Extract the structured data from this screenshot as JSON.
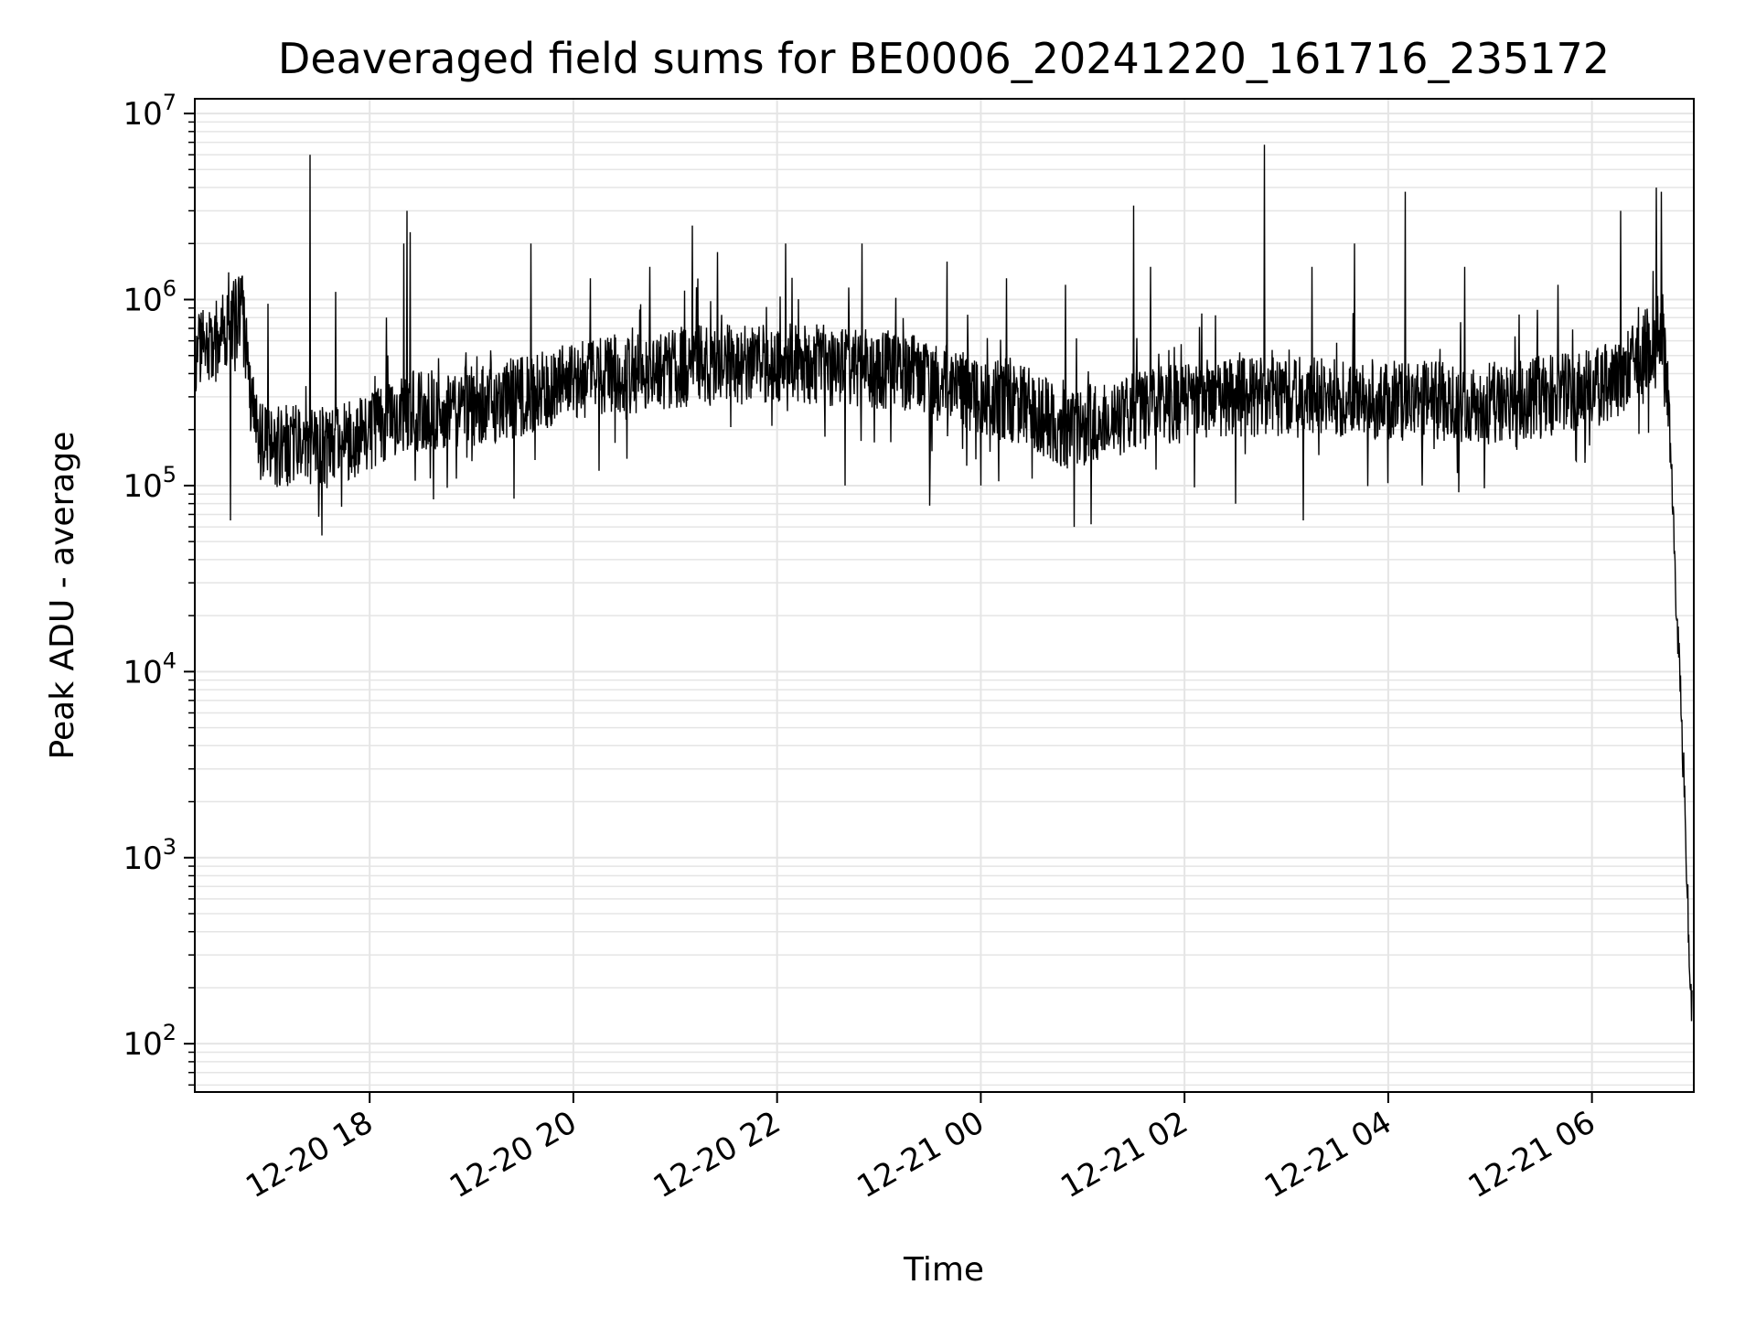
{
  "chart_data": {
    "type": "line",
    "title": "Deaveraged field sums for BE0006_20241220_161716_235172",
    "xlabel": "Time",
    "ylabel": "Peak ADU - average",
    "x_type": "datetime",
    "x_range": [
      "2024-12-20 16:17",
      "2024-12-21 07:00"
    ],
    "y_scale": "log",
    "ylim": [
      55,
      12000000
    ],
    "grid": true,
    "legend": "none",
    "line_color": "#000000",
    "grid_color": "#e5e5e5",
    "x_ticks": [
      {
        "value": "2024-12-20 18:00",
        "label": "12-20 18"
      },
      {
        "value": "2024-12-20 20:00",
        "label": "12-20 20"
      },
      {
        "value": "2024-12-20 22:00",
        "label": "12-20 22"
      },
      {
        "value": "2024-12-21 00:00",
        "label": "12-21 00"
      },
      {
        "value": "2024-12-21 02:00",
        "label": "12-21 02"
      },
      {
        "value": "2024-12-21 04:00",
        "label": "12-21 04"
      },
      {
        "value": "2024-12-21 06:00",
        "label": "12-21 06"
      }
    ],
    "y_ticks": [
      {
        "value": 100,
        "base": "10",
        "exp": "2"
      },
      {
        "value": 1000,
        "base": "10",
        "exp": "3"
      },
      {
        "value": 10000,
        "base": "10",
        "exp": "4"
      },
      {
        "value": 100000,
        "base": "10",
        "exp": "5"
      },
      {
        "value": 1000000,
        "base": "10",
        "exp": "6"
      },
      {
        "value": 10000000,
        "base": "10",
        "exp": "7"
      }
    ],
    "series": [
      {
        "x": [
          "2024-12-20 16:17",
          "2024-12-20 16:25",
          "2024-12-20 16:35",
          "2024-12-20 16:45",
          "2024-12-20 16:50",
          "2024-12-20 16:55",
          "2024-12-20 17:05",
          "2024-12-20 17:20",
          "2024-12-20 17:35",
          "2024-12-20 17:50",
          "2024-12-20 18:00",
          "2024-12-20 18:15",
          "2024-12-20 18:25",
          "2024-12-20 18:45",
          "2024-12-20 19:00",
          "2024-12-20 19:30",
          "2024-12-20 20:00",
          "2024-12-20 20:30",
          "2024-12-20 21:00",
          "2024-12-20 21:30",
          "2024-12-20 22:00",
          "2024-12-20 22:30",
          "2024-12-20 23:00",
          "2024-12-20 23:30",
          "2024-12-21 00:00",
          "2024-12-21 00:30",
          "2024-12-21 00:50",
          "2024-12-21 01:00",
          "2024-12-21 01:30",
          "2024-12-21 02:00",
          "2024-12-21 02:30",
          "2024-12-21 03:00",
          "2024-12-21 03:30",
          "2024-12-21 04:00",
          "2024-12-21 04:30",
          "2024-12-21 05:00",
          "2024-12-21 05:30",
          "2024-12-21 06:00",
          "2024-12-21 06:20",
          "2024-12-21 06:35",
          "2024-12-21 06:42",
          "2024-12-21 06:45",
          "2024-12-21 06:48",
          "2024-12-21 06:50",
          "2024-12-21 06:52",
          "2024-12-21 06:54",
          "2024-12-21 06:56",
          "2024-12-21 06:58",
          "2024-12-21 07:00"
        ],
        "values": [
          500000,
          550000,
          700000,
          850000,
          280000,
          170000,
          160000,
          170000,
          160000,
          180000,
          200000,
          230000,
          250000,
          260000,
          270000,
          300000,
          360000,
          400000,
          430000,
          450000,
          460000,
          440000,
          420000,
          380000,
          300000,
          260000,
          200000,
          210000,
          250000,
          280000,
          300000,
          300000,
          300000,
          290000,
          280000,
          280000,
          300000,
          330000,
          400000,
          600000,
          700000,
          300000,
          60000,
          20000,
          8000,
          3000,
          800,
          200,
          100
        ]
      }
    ],
    "spikes": [
      {
        "x": "2024-12-20 16:37",
        "value": 1400000
      },
      {
        "x": "2024-12-20 17:00",
        "value": 950000
      },
      {
        "x": "2024-12-20 17:25",
        "value": 6000000
      },
      {
        "x": "2024-12-20 17:40",
        "value": 1100000
      },
      {
        "x": "2024-12-20 18:10",
        "value": 800000
      },
      {
        "x": "2024-12-20 18:20",
        "value": 2000000
      },
      {
        "x": "2024-12-20 18:22",
        "value": 3000000
      },
      {
        "x": "2024-12-20 18:24",
        "value": 2300000
      },
      {
        "x": "2024-12-20 19:35",
        "value": 2000000
      },
      {
        "x": "2024-12-20 20:10",
        "value": 1300000
      },
      {
        "x": "2024-12-20 20:45",
        "value": 1500000
      },
      {
        "x": "2024-12-20 21:10",
        "value": 2500000
      },
      {
        "x": "2024-12-20 21:25",
        "value": 1800000
      },
      {
        "x": "2024-12-20 22:05",
        "value": 2000000
      },
      {
        "x": "2024-12-20 22:50",
        "value": 2000000
      },
      {
        "x": "2024-12-20 23:40",
        "value": 1600000
      },
      {
        "x": "2024-12-21 00:15",
        "value": 1300000
      },
      {
        "x": "2024-12-21 00:50",
        "value": 1200000
      },
      {
        "x": "2024-12-21 01:30",
        "value": 3200000
      },
      {
        "x": "2024-12-21 01:40",
        "value": 1500000
      },
      {
        "x": "2024-12-21 02:47",
        "value": 6800000
      },
      {
        "x": "2024-12-21 03:15",
        "value": 1500000
      },
      {
        "x": "2024-12-21 03:40",
        "value": 2000000
      },
      {
        "x": "2024-12-21 04:10",
        "value": 3800000
      },
      {
        "x": "2024-12-21 04:45",
        "value": 1500000
      },
      {
        "x": "2024-12-21 05:40",
        "value": 1200000
      },
      {
        "x": "2024-12-21 06:17",
        "value": 3000000
      },
      {
        "x": "2024-12-21 06:38",
        "value": 4000000
      },
      {
        "x": "2024-12-21 06:41",
        "value": 3800000
      }
    ],
    "dips": [
      {
        "x": "2024-12-20 16:38",
        "value": 65000
      },
      {
        "x": "2024-12-20 17:00",
        "value": 75000
      },
      {
        "x": "2024-12-20 17:30",
        "value": 68000
      },
      {
        "x": "2024-12-20 18:10",
        "value": 60000
      },
      {
        "x": "2024-12-20 19:25",
        "value": 85000
      },
      {
        "x": "2024-12-20 20:15",
        "value": 120000
      },
      {
        "x": "2024-12-20 22:40",
        "value": 100000
      },
      {
        "x": "2024-12-20 23:30",
        "value": 78000
      },
      {
        "x": "2024-12-21 00:00",
        "value": 100000
      },
      {
        "x": "2024-12-21 00:55",
        "value": 60000
      },
      {
        "x": "2024-12-21 01:05",
        "value": 62000
      },
      {
        "x": "2024-12-21 02:30",
        "value": 80000
      },
      {
        "x": "2024-12-21 03:10",
        "value": 65000
      },
      {
        "x": "2024-12-21 04:20",
        "value": 100000
      }
    ]
  }
}
